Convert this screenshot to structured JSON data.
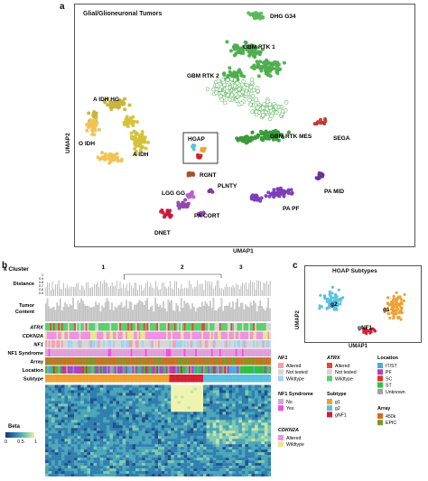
{
  "panel_a": {
    "letter": "a",
    "title": "Glial/Glioneuronal Tumors",
    "xlabel": "UMAP1",
    "ylabel": "UMAP2",
    "clusters": [
      {
        "label": "DHG G34",
        "color": "#5cb85c"
      },
      {
        "label": "GBM RTK 1",
        "color": "#4cae4c"
      },
      {
        "label": "GBM RTK 2",
        "color": "#9ed89e"
      },
      {
        "label": "GBM RTK MES",
        "color": "#3a9a3a"
      },
      {
        "label": "SEGA",
        "color": "#c0392b"
      },
      {
        "label": "A IDH HG",
        "color": "#c8b43a"
      },
      {
        "label": "O IDH",
        "color": "#f2c255"
      },
      {
        "label": "A IDH",
        "color": "#d4c23a"
      },
      {
        "label": "HGAP",
        "color": "#333333"
      },
      {
        "label": "RGNT",
        "color": "#a0522d"
      },
      {
        "label": "PLNTY",
        "color": "#7a3d9a"
      },
      {
        "label": "LGG GG",
        "color": "#b85dd0"
      },
      {
        "label": "PA CORT",
        "color": "#8e44ad"
      },
      {
        "label": "PA MID",
        "color": "#6a2fa0"
      },
      {
        "label": "PA PF",
        "color": "#7d3cb8"
      },
      {
        "label": "DNET",
        "color": "#c9183d"
      }
    ]
  },
  "panel_b": {
    "letter": "b",
    "k_cluster_label": "k Cluster",
    "cluster_numbers": [
      "1",
      "2",
      "3"
    ],
    "row_labels": {
      "distance": "Distance",
      "tumor_content": "Tumor Content",
      "atrx": "ATRX",
      "cdkn2a": "CDKN2A",
      "nf1": "NF1",
      "nf1_syndrome": "NF1 Syndrome",
      "array": "Array",
      "location": "Location",
      "subtype": "Subtype"
    },
    "distance_ticks": [
      "1",
      "0.9",
      "0.8",
      "0.7",
      "0.6",
      "0.5"
    ],
    "beta_title": "Beta",
    "beta_ticks": [
      "0",
      "0.5",
      "1"
    ]
  },
  "panel_c": {
    "letter": "c",
    "title": "HGAP Subtypes",
    "xlabel": "UMAP1",
    "ylabel": "UMAP2",
    "group_labels": [
      "g2",
      "g1",
      "gNF1"
    ],
    "colors": {
      "g2": "#5bc0de",
      "g1": "#f0a030",
      "gNF1": "#d42030"
    }
  },
  "legend": {
    "nf1": {
      "title": "NF1",
      "items": [
        {
          "label": "Altered",
          "color": "#f4a0a8"
        },
        {
          "label": "Not tested",
          "color": "#d6d6d6"
        },
        {
          "label": "Wildtype",
          "color": "#a0d4f0"
        }
      ]
    },
    "atrx": {
      "title": "ATRX",
      "items": [
        {
          "label": "Altered",
          "color": "#e8443a"
        },
        {
          "label": "Not tested",
          "color": "#d6d6d6"
        },
        {
          "label": "Wildtype",
          "color": "#5ad06a"
        }
      ]
    },
    "location": {
      "title": "Location",
      "items": [
        {
          "label": "IT/ST",
          "color": "#4fa8d8"
        },
        {
          "label": "PF",
          "color": "#b040c8"
        },
        {
          "label": "SC",
          "color": "#e83020"
        },
        {
          "label": "ST",
          "color": "#30c040"
        },
        {
          "label": "Unknown",
          "color": "#a0a0a0"
        }
      ]
    },
    "nf1_syndrome": {
      "title": "NF1 Syndrome",
      "items": [
        {
          "label": "No",
          "color": "#e0a0d8"
        },
        {
          "label": "Yes",
          "color": "#f050e0"
        }
      ]
    },
    "subtype": {
      "title": "Subtype",
      "items": [
        {
          "label": "g1",
          "color": "#f0a030"
        },
        {
          "label": "g2",
          "color": "#5bc0de"
        },
        {
          "label": "gNF1",
          "color": "#d42030"
        }
      ]
    },
    "array": {
      "title": "Array",
      "items": [
        {
          "label": "450k",
          "color": "#d86a20"
        },
        {
          "label": "EPIC",
          "color": "#7a9a2a"
        }
      ]
    },
    "cdkn2a": {
      "title": "CDKN2A",
      "items": [
        {
          "label": "Altered",
          "color": "#f090e8"
        },
        {
          "label": "Wildtype",
          "color": "#e8e888"
        }
      ]
    }
  }
}
